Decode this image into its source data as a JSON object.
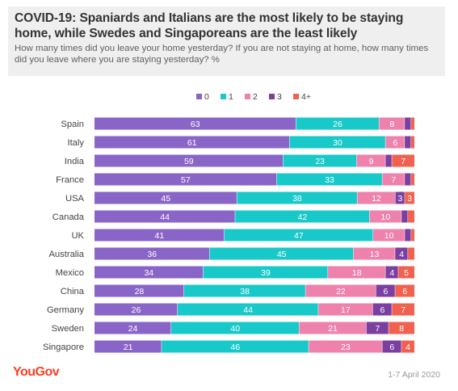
{
  "header": {
    "title": "COVID-19: Spaniards and Italians are the most likely to be staying home, while Swedes and Singaporeans are the least likely",
    "subtitle": "How many times did you leave your home yesterday?  If you are not staying at home, how many times did you leave where you are staying yesterday? %"
  },
  "footer": {
    "brand": "YouGov",
    "date": "1-7 April 2020"
  },
  "colors": {
    "0": "#8a65c8",
    "1": "#19c9c9",
    "2": "#ee82ac",
    "3": "#7a3fa0",
    "4+": "#f0624f"
  },
  "chart_data": {
    "type": "bar",
    "orientation": "horizontal",
    "stacked": true,
    "categories": [
      "Spain",
      "Italy",
      "India",
      "France",
      "USA",
      "Canada",
      "UK",
      "Australia",
      "Mexico",
      "China",
      "Germany",
      "Sweden",
      "Singapore"
    ],
    "legend_position": "top-right",
    "series": [
      {
        "name": "0",
        "values": [
          63,
          61,
          59,
          57,
          45,
          44,
          41,
          36,
          34,
          28,
          26,
          24,
          21
        ]
      },
      {
        "name": "1",
        "values": [
          26,
          30,
          23,
          33,
          38,
          42,
          47,
          45,
          39,
          38,
          44,
          40,
          46
        ]
      },
      {
        "name": "2",
        "values": [
          8,
          6,
          9,
          7,
          12,
          10,
          10,
          13,
          18,
          22,
          17,
          21,
          23
        ]
      },
      {
        "name": "3",
        "values": [
          2,
          2,
          2,
          2,
          3,
          2,
          2,
          4,
          4,
          6,
          6,
          7,
          6
        ]
      },
      {
        "name": "4+",
        "values": [
          1,
          1,
          7,
          1,
          3,
          2,
          1,
          2,
          5,
          6,
          7,
          8,
          4
        ]
      }
    ],
    "labels": [
      [
        "63",
        "26",
        "8",
        "",
        ""
      ],
      [
        "61",
        "30",
        "6",
        "",
        ""
      ],
      [
        "59",
        "23",
        "9",
        "",
        "7"
      ],
      [
        "57",
        "33",
        "7",
        "",
        ""
      ],
      [
        "45",
        "38",
        "12",
        "3",
        "3"
      ],
      [
        "44",
        "42",
        "10",
        "",
        ""
      ],
      [
        "41",
        "47",
        "10",
        "",
        ""
      ],
      [
        "36",
        "45",
        "13",
        "4",
        ""
      ],
      [
        "34",
        "39",
        "18",
        "4",
        "5"
      ],
      [
        "28",
        "38",
        "22",
        "6",
        "6"
      ],
      [
        "26",
        "44",
        "17",
        "6",
        "7"
      ],
      [
        "24",
        "40",
        "21",
        "7",
        "8"
      ],
      [
        "21",
        "46",
        "23",
        "6",
        "4"
      ]
    ],
    "xlim": [
      0,
      100
    ],
    "grid": false
  }
}
